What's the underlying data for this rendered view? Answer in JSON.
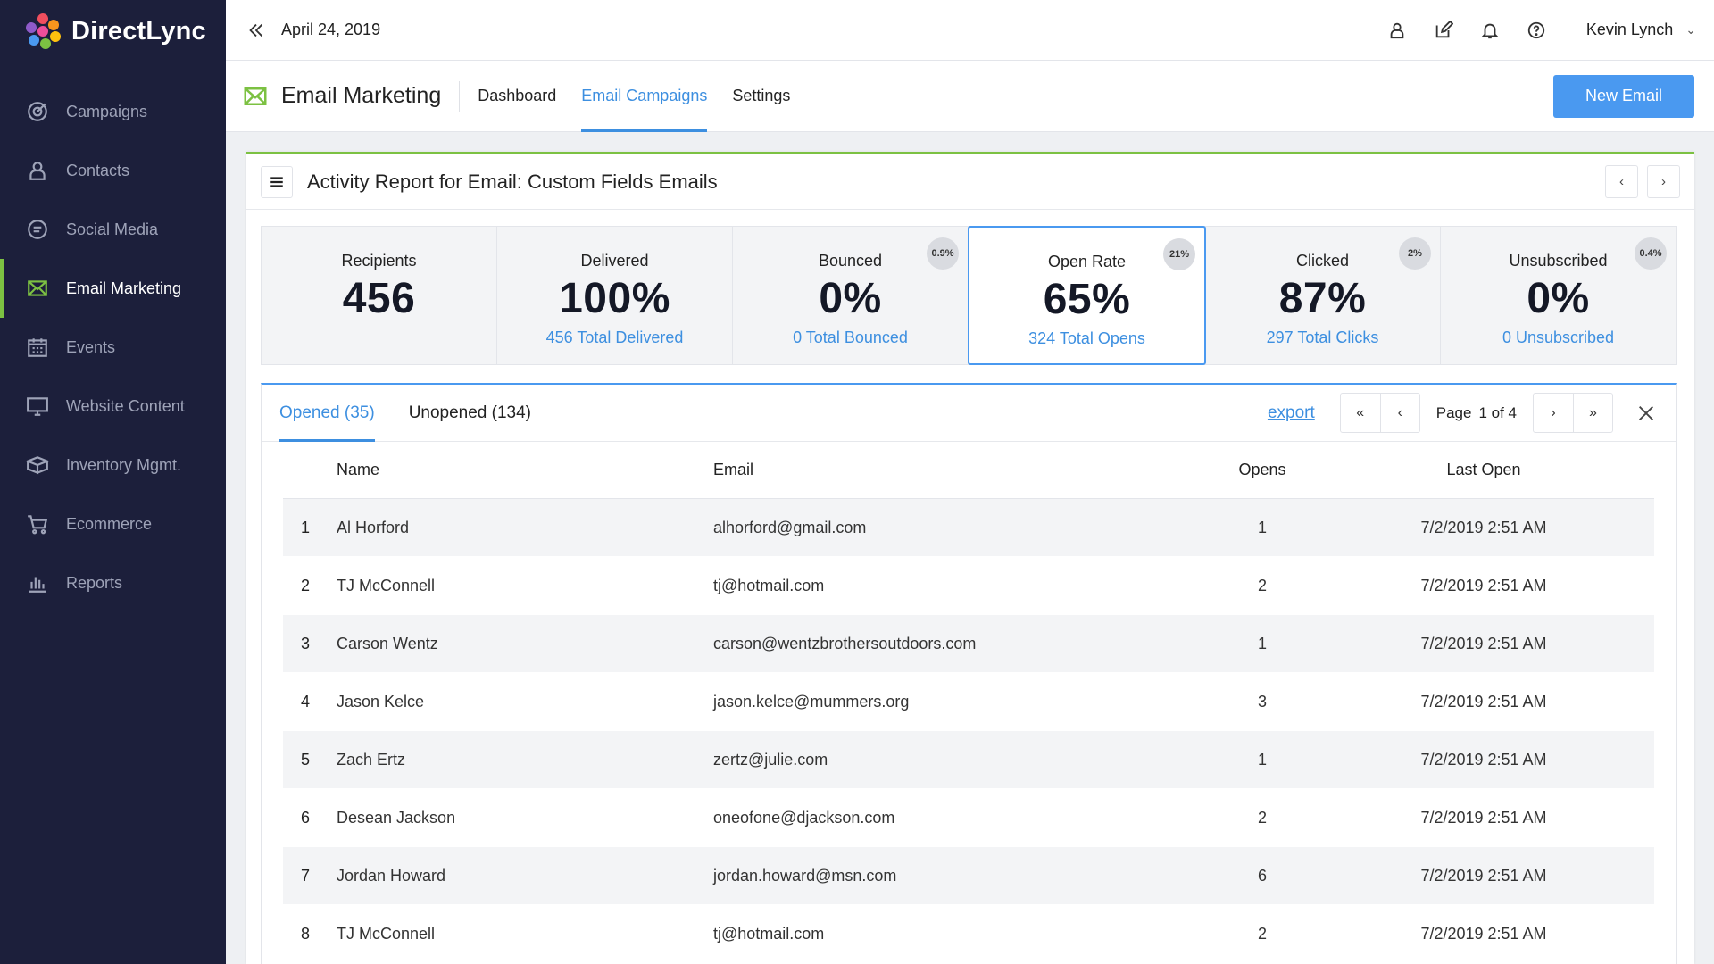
{
  "brand": {
    "name": "DirectLync",
    "accent": "#7cc142",
    "primary": "#4a99f0",
    "sidebar_bg": "#1c1f3b"
  },
  "sidebar": {
    "items": [
      {
        "label": "Campaigns",
        "icon": "target-icon",
        "active": false
      },
      {
        "label": "Contacts",
        "icon": "person-icon",
        "active": false
      },
      {
        "label": "Social Media",
        "icon": "chat-icon",
        "active": false
      },
      {
        "label": "Email Marketing",
        "icon": "envelope-icon",
        "active": true
      },
      {
        "label": "Events",
        "icon": "calendar-icon",
        "active": false
      },
      {
        "label": "Website Content",
        "icon": "monitor-icon",
        "active": false
      },
      {
        "label": "Inventory Mgmt.",
        "icon": "box-icon",
        "active": false
      },
      {
        "label": "Ecommerce",
        "icon": "cart-icon",
        "active": false
      },
      {
        "label": "Reports",
        "icon": "bar-chart-icon",
        "active": false
      }
    ]
  },
  "topbar": {
    "date": "April 24, 2019",
    "user_name": "Kevin Lynch"
  },
  "section": {
    "title": "Email Marketing",
    "tabs": [
      {
        "label": "Dashboard",
        "active": false
      },
      {
        "label": "Email Campaigns",
        "active": true
      },
      {
        "label": "Settings",
        "active": false
      }
    ],
    "new_button": "New Email"
  },
  "report": {
    "title": "Activity Report for Email: Custom Fields Emails",
    "stats": [
      {
        "label": "Recipients",
        "value": "456",
        "sub": "",
        "badge": ""
      },
      {
        "label": "Delivered",
        "value": "100%",
        "sub": "456 Total Delivered",
        "badge": ""
      },
      {
        "label": "Bounced",
        "value": "0%",
        "sub": "0 Total Bounced",
        "badge": "0.9%"
      },
      {
        "label": "Open Rate",
        "value": "65%",
        "sub": "324 Total Opens",
        "badge": "21%"
      },
      {
        "label": "Clicked",
        "value": "87%",
        "sub": "297 Total Clicks",
        "badge": "2%"
      },
      {
        "label": "Unsubscribed",
        "value": "0%",
        "sub": "0 Unsubscribed",
        "badge": "0.4%"
      }
    ],
    "selected_stat": "Open Rate"
  },
  "table": {
    "subtabs": [
      {
        "label": "Opened (35)",
        "active": true
      },
      {
        "label": "Unopened (134)",
        "active": false
      }
    ],
    "export_label": "export",
    "page_label": "Page",
    "page_value": "1 of 4",
    "columns": [
      "Name",
      "Email",
      "Opens",
      "Last Open"
    ],
    "rows": [
      {
        "num": "1",
        "name": "Al Horford",
        "email": "alhorford@gmail.com",
        "opens": "1",
        "last": "7/2/2019 2:51 AM"
      },
      {
        "num": "2",
        "name": "TJ McConnell",
        "email": "tj@hotmail.com",
        "opens": "2",
        "last": "7/2/2019 2:51 AM"
      },
      {
        "num": "3",
        "name": "Carson Wentz",
        "email": "carson@wentzbrothersoutdoors.com",
        "opens": "1",
        "last": "7/2/2019 2:51 AM"
      },
      {
        "num": "4",
        "name": "Jason Kelce",
        "email": "jason.kelce@mummers.org",
        "opens": "3",
        "last": "7/2/2019 2:51 AM"
      },
      {
        "num": "5",
        "name": "Zach Ertz",
        "email": "zertz@julie.com",
        "opens": "1",
        "last": "7/2/2019 2:51 AM"
      },
      {
        "num": "6",
        "name": "Desean Jackson",
        "email": "oneofone@djackson.com",
        "opens": "2",
        "last": "7/2/2019 2:51 AM"
      },
      {
        "num": "7",
        "name": "Jordan Howard",
        "email": "jordan.howard@msn.com",
        "opens": "6",
        "last": "7/2/2019 2:51 AM"
      },
      {
        "num": "8",
        "name": "TJ McConnell",
        "email": "tj@hotmail.com",
        "opens": "2",
        "last": "7/2/2019 2:51 AM"
      }
    ]
  }
}
